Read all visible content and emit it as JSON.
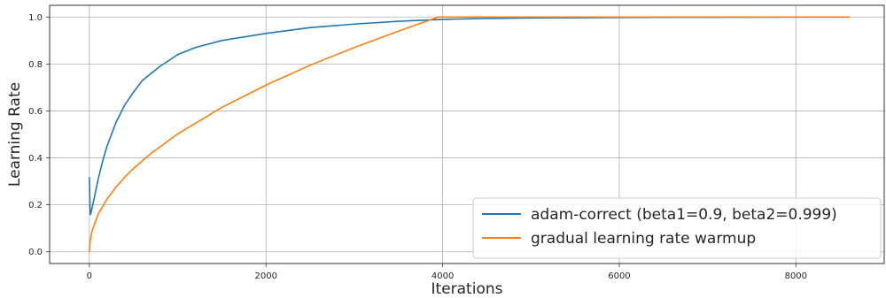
{
  "chart_data": {
    "type": "line",
    "xlabel": "Iterations",
    "ylabel": "Learning Rate",
    "xlim": [
      -450,
      9000
    ],
    "ylim": [
      -0.05,
      1.05
    ],
    "xticks": [
      0,
      2000,
      4000,
      6000,
      8000
    ],
    "xtick_labels": [
      "0",
      "2000",
      "4000",
      "6000",
      "8000"
    ],
    "yticks": [
      0.0,
      0.2,
      0.4,
      0.6,
      0.8,
      1.0
    ],
    "ytick_labels": [
      "0.0",
      "0.2",
      "0.4",
      "0.6",
      "0.8",
      "1.0"
    ],
    "grid": true,
    "legend_position": "lower-right",
    "series": [
      {
        "name": "adam-correct (beta1=0.9, beta2=0.999)",
        "color": "#1f77b4",
        "x": [
          0,
          10,
          20,
          50,
          100,
          150,
          200,
          300,
          400,
          500,
          600,
          800,
          1000,
          1200,
          1500,
          2000,
          2500,
          3000,
          3500,
          4000,
          4500,
          5000,
          6000,
          7000,
          8000,
          8600
        ],
        "y": [
          0.316,
          0.158,
          0.168,
          0.22,
          0.31,
          0.386,
          0.45,
          0.55,
          0.625,
          0.68,
          0.73,
          0.79,
          0.84,
          0.87,
          0.9,
          0.93,
          0.955,
          0.97,
          0.982,
          0.99,
          0.994,
          0.996,
          0.998,
          0.999,
          1.0,
          1.0
        ]
      },
      {
        "name": "gradual learning rate warmup",
        "color": "#ff7f0e",
        "x": [
          0,
          10,
          25,
          50,
          100,
          200,
          300,
          400,
          500,
          700,
          1000,
          1500,
          2000,
          2500,
          3000,
          3500,
          3950,
          4000,
          5000,
          6000,
          7000,
          8000,
          8600
        ],
        "y": [
          0.0,
          0.05,
          0.08,
          0.11,
          0.16,
          0.225,
          0.275,
          0.318,
          0.355,
          0.42,
          0.502,
          0.615,
          0.71,
          0.795,
          0.87,
          0.94,
          1.0,
          1.0,
          1.0,
          1.0,
          1.0,
          1.0,
          1.0
        ]
      }
    ]
  }
}
